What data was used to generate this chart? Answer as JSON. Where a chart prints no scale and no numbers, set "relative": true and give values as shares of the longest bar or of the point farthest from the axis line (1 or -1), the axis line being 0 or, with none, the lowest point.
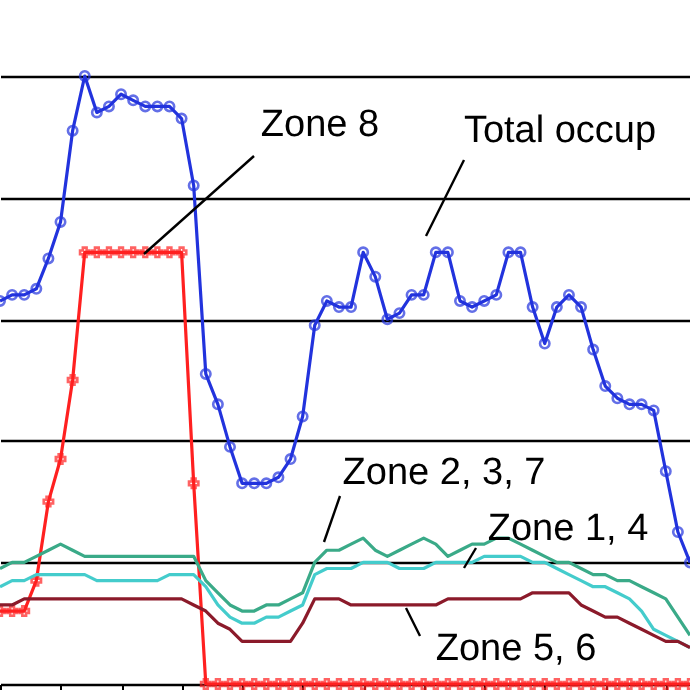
{
  "chart_data": {
    "type": "line",
    "relative": true,
    "grid": "y",
    "line_style": "solid",
    "annotations": [
      "Zone 8",
      "Total occup",
      "Zone 2, 3, 7",
      "Zone 1, 4",
      "Zone 5, 6"
    ],
    "categories": [
      null,
      null,
      null,
      null,
      null,
      null,
      null,
      null,
      null,
      null,
      null,
      null,
      null,
      null,
      null,
      null,
      null,
      null,
      null,
      null,
      null,
      null,
      null,
      null,
      null,
      null,
      null,
      null,
      null,
      null,
      null,
      null,
      null,
      null,
      null,
      null,
      null,
      null,
      null,
      null,
      null,
      null,
      null,
      null,
      null,
      null,
      null,
      null,
      null,
      null,
      null,
      null,
      null,
      null,
      null,
      null,
      null,
      null
    ],
    "series": [
      {
        "color": "#2233dd",
        "marker": "circle",
        "values": [
          0.63,
          0.64,
          0.64,
          0.65,
          0.7,
          0.76,
          0.91,
          1,
          0.94,
          0.95,
          0.97,
          0.96,
          0.95,
          0.95,
          0.95,
          0.93,
          0.82,
          0.51,
          0.46,
          0.39,
          0.33,
          0.33,
          0.33,
          0.34,
          0.37,
          0.44,
          0.59,
          0.63,
          0.62,
          0.62,
          0.71,
          0.67,
          0.6,
          0.61,
          0.64,
          0.64,
          0.71,
          0.71,
          0.63,
          0.62,
          0.63,
          0.64,
          0.71,
          0.71,
          0.62,
          0.56,
          0.62,
          0.64,
          0.62,
          0.55,
          0.49,
          0.47,
          0.46,
          0.46,
          0.45,
          0.35,
          0.25,
          0.2
        ]
      },
      {
        "color": "#ff2020",
        "marker": "cross",
        "values": [
          0.12,
          0.12,
          0.12,
          0.17,
          0.3,
          0.37,
          0.5,
          0.71,
          0.71,
          0.71,
          0.71,
          0.71,
          0.71,
          0.71,
          0.71,
          0.71,
          0.33,
          0,
          0,
          0,
          0,
          0,
          0,
          0,
          0,
          0,
          0,
          0,
          0,
          0,
          0,
          0,
          0,
          0,
          0,
          0,
          0,
          0,
          0,
          0,
          0,
          0,
          0,
          0,
          0,
          0,
          0,
          0,
          0,
          0,
          0,
          0,
          0,
          0,
          0,
          0,
          0,
          0
        ]
      },
      {
        "color": "#3aaa88",
        "values": [
          0.19,
          0.2,
          0.2,
          0.21,
          0.22,
          0.23,
          0.22,
          0.21,
          0.21,
          0.21,
          0.21,
          0.21,
          0.21,
          0.21,
          0.21,
          0.21,
          0.21,
          0.17,
          0.15,
          0.13,
          0.12,
          0.12,
          0.13,
          0.13,
          0.14,
          0.15,
          0.2,
          0.22,
          0.22,
          0.23,
          0.24,
          0.22,
          0.21,
          0.22,
          0.23,
          0.24,
          0.23,
          0.21,
          0.22,
          0.23,
          0.23,
          0.24,
          0.24,
          0.23,
          0.22,
          0.21,
          0.2,
          0.2,
          0.19,
          0.18,
          0.18,
          0.17,
          0.17,
          0.16,
          0.15,
          0.14,
          0.11,
          0.08
        ]
      },
      {
        "color": "#44cccc",
        "values": [
          0.16,
          0.17,
          0.17,
          0.18,
          0.18,
          0.18,
          0.18,
          0.18,
          0.17,
          0.17,
          0.17,
          0.17,
          0.17,
          0.17,
          0.18,
          0.18,
          0.18,
          0.16,
          0.13,
          0.11,
          0.1,
          0.1,
          0.11,
          0.11,
          0.12,
          0.13,
          0.18,
          0.19,
          0.19,
          0.19,
          0.2,
          0.2,
          0.2,
          0.19,
          0.19,
          0.19,
          0.2,
          0.2,
          0.2,
          0.2,
          0.21,
          0.21,
          0.21,
          0.21,
          0.2,
          0.2,
          0.19,
          0.18,
          0.17,
          0.16,
          0.16,
          0.15,
          0.14,
          0.12,
          0.09,
          0.08,
          0.07,
          0.06
        ]
      },
      {
        "color": "#8b1a2a",
        "values": [
          0.13,
          0.13,
          0.14,
          0.14,
          0.14,
          0.14,
          0.14,
          0.14,
          0.14,
          0.14,
          0.14,
          0.14,
          0.14,
          0.14,
          0.14,
          0.14,
          0.13,
          0.12,
          0.1,
          0.09,
          0.07,
          0.07,
          0.07,
          0.07,
          0.07,
          0.1,
          0.14,
          0.14,
          0.14,
          0.13,
          0.13,
          0.13,
          0.13,
          0.13,
          0.13,
          0.13,
          0.13,
          0.14,
          0.14,
          0.14,
          0.14,
          0.14,
          0.14,
          0.14,
          0.15,
          0.15,
          0.15,
          0.15,
          0.13,
          0.12,
          0.11,
          0.11,
          0.1,
          0.09,
          0.08,
          0.07,
          0.07,
          0.06
        ]
      }
    ]
  }
}
